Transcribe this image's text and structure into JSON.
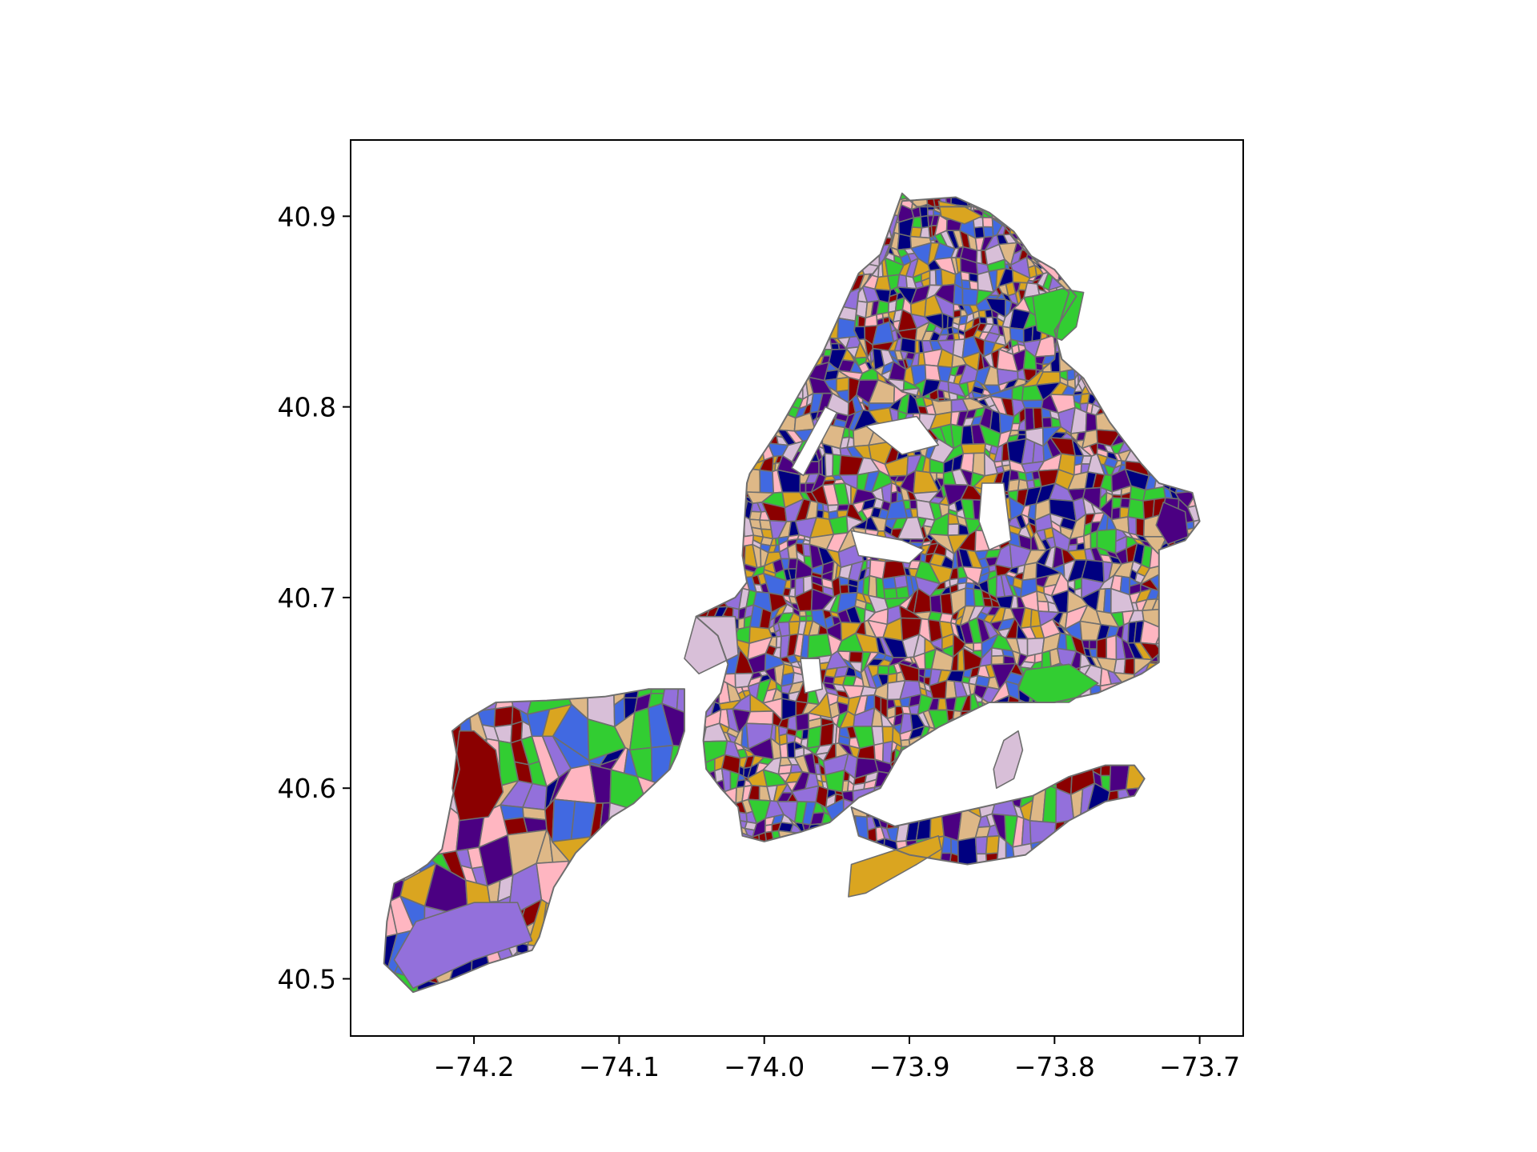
{
  "map": {
    "type": "choropleth",
    "title": "",
    "xlabel": "",
    "ylabel": "",
    "xlim": [
      -74.285,
      -73.67
    ],
    "ylim": [
      40.47,
      40.94
    ],
    "x_ticks": [
      {
        "value": -74.2,
        "label": "−74.2"
      },
      {
        "value": -74.1,
        "label": "−74.1"
      },
      {
        "value": -74.0,
        "label": "−74.0"
      },
      {
        "value": -73.9,
        "label": "−73.9"
      },
      {
        "value": -73.8,
        "label": "−73.8"
      },
      {
        "value": -73.7,
        "label": "−73.7"
      }
    ],
    "y_ticks": [
      {
        "value": 40.5,
        "label": "40.5"
      },
      {
        "value": 40.6,
        "label": "40.6"
      },
      {
        "value": 40.7,
        "label": "40.7"
      },
      {
        "value": 40.8,
        "label": "40.8"
      },
      {
        "value": 40.9,
        "label": "40.9"
      }
    ],
    "palette": [
      "#32cd32",
      "#daa520",
      "#4169e1",
      "#8b0000",
      "#9370db",
      "#4b0082",
      "#000080",
      "#ffb6c1",
      "#deb887",
      "#d8bfd8"
    ],
    "edge_color": "#6e6e6e",
    "grid": false,
    "legend": "none"
  }
}
